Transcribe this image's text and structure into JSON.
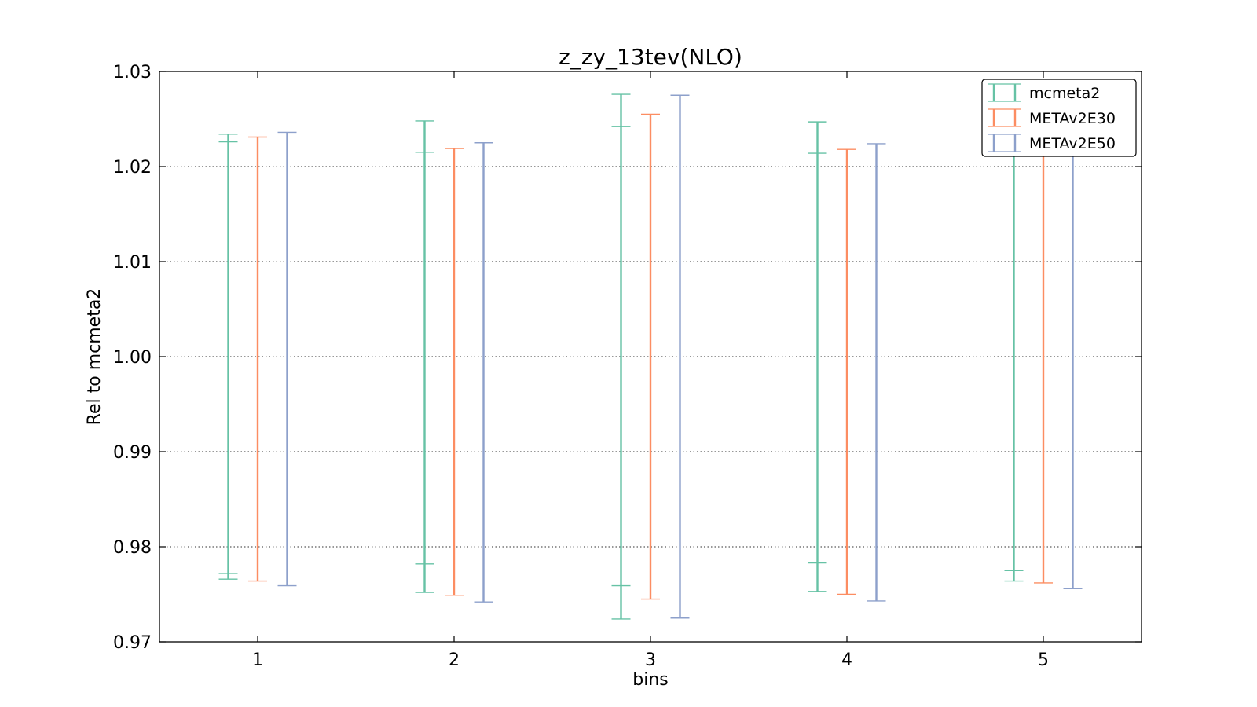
{
  "chart_data": {
    "type": "errorbar",
    "title": "z_zy_13tev(NLO)",
    "xlabel": "bins",
    "ylabel": "Rel to mcmeta2",
    "categories": [
      "1",
      "2",
      "3",
      "4",
      "5"
    ],
    "xlim": [
      0.5,
      5.5
    ],
    "ylim": [
      0.97,
      1.03
    ],
    "yticks": [
      "0.97",
      "0.98",
      "0.99",
      "1.00",
      "1.01",
      "1.02",
      "1.03"
    ],
    "grid": "horizontal dotted",
    "legend_position": "top-right",
    "series": [
      {
        "name": "mcmeta2",
        "color": "#66c2a5",
        "offset": -0.15,
        "bins": [
          {
            "bin": 1,
            "outer": [
              0.9766,
              1.0234
            ],
            "inner": [
              0.9772,
              1.0226
            ]
          },
          {
            "bin": 2,
            "outer": [
              0.9752,
              1.0248
            ],
            "inner": [
              0.9782,
              1.0215
            ]
          },
          {
            "bin": 3,
            "outer": [
              0.9724,
              1.0276
            ],
            "inner": [
              0.9759,
              1.0242
            ]
          },
          {
            "bin": 4,
            "outer": [
              0.9753,
              1.0247
            ],
            "inner": [
              0.9783,
              1.0214
            ]
          },
          {
            "bin": 5,
            "outer": [
              0.9764,
              1.0236
            ],
            "inner": [
              0.9775,
              1.0226
            ]
          }
        ]
      },
      {
        "name": "METAv2E30",
        "color": "#fc8d62",
        "offset": 0,
        "bins": [
          {
            "bin": 1,
            "outer": [
              0.9764,
              1.0231
            ]
          },
          {
            "bin": 2,
            "outer": [
              0.9749,
              1.0219
            ]
          },
          {
            "bin": 3,
            "outer": [
              0.9745,
              1.0255
            ]
          },
          {
            "bin": 4,
            "outer": [
              0.975,
              1.0218
            ]
          },
          {
            "bin": 5,
            "outer": [
              0.9762,
              1.0227
            ]
          }
        ]
      },
      {
        "name": "METAv2E50",
        "color": "#8da0cb",
        "offset": 0.15,
        "bins": [
          {
            "bin": 1,
            "outer": [
              0.9759,
              1.0236
            ]
          },
          {
            "bin": 2,
            "outer": [
              0.9742,
              1.0225
            ]
          },
          {
            "bin": 3,
            "outer": [
              0.9725,
              1.0275
            ]
          },
          {
            "bin": 4,
            "outer": [
              0.9743,
              1.0224
            ]
          },
          {
            "bin": 5,
            "outer": [
              0.9756,
              1.0238
            ]
          }
        ]
      }
    ]
  }
}
